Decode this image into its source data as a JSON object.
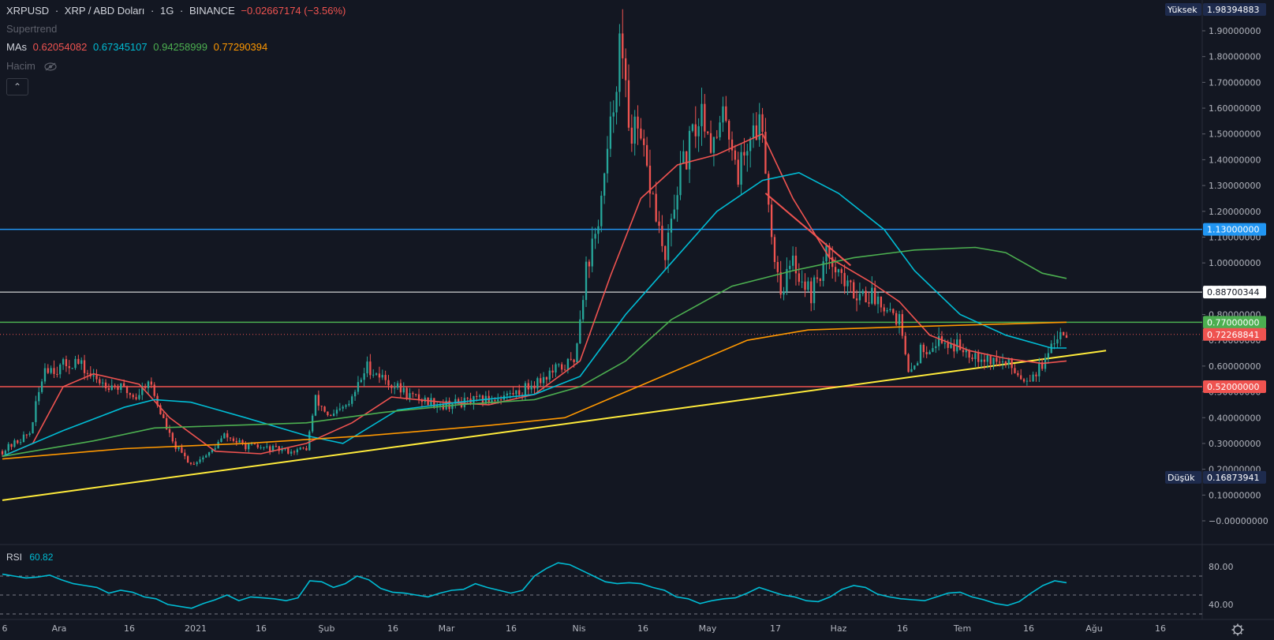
{
  "header": {
    "symbol": "XRPUSD",
    "name": "XRP / ABD Doları",
    "interval": "1G",
    "exchange": "BINANCE",
    "change": "−0.02667174 (−3.56%)",
    "indicator_supertrend": "Supertrend",
    "mas_label": "MAs",
    "ma_values": [
      "0.62054082",
      "0.67345107",
      "0.94258999",
      "0.77290394"
    ],
    "volume_label": "Hacim",
    "collapse_glyph": "⌃"
  },
  "colors": {
    "up": "#26a69a",
    "down": "#ef5350",
    "ma1": "#ef5350",
    "ma2": "#00bcd4",
    "ma3": "#4caf50",
    "ma4": "#ff9800",
    "trendline": "#ffeb3b",
    "resistance": "#2196f3",
    "support": "#ef5350",
    "level_white": "#ffffff",
    "level_green": "#4caf50"
  },
  "price_axis": {
    "labels": [
      "1.90000000",
      "1.80000000",
      "1.70000000",
      "1.60000000",
      "1.50000000",
      "1.40000000",
      "1.30000000",
      "1.20000000",
      "1.10000000",
      "1.00000000",
      "0.90000000",
      "0.80000000",
      "0.70000000",
      "0.60000000",
      "0.50000000",
      "0.40000000",
      "0.30000000",
      "0.20000000",
      "0.10000000",
      "−0.00000000"
    ],
    "tags": {
      "high_label": "Yüksek",
      "high": "1.98394883",
      "low_label": "Düşük",
      "low": "0.16873941",
      "resistance": "1.13000000",
      "white_level": "0.88700344",
      "green_level": "0.77000000",
      "last_price": "0.72268841",
      "support": "0.52000000"
    }
  },
  "time_axis": {
    "labels": [
      "6",
      "Ara",
      "16",
      "2021",
      "16",
      "Şub",
      "16",
      "Mar",
      "16",
      "Nis",
      "16",
      "May",
      "17",
      "Haz",
      "16",
      "Tem",
      "16",
      "Ağu",
      "16"
    ]
  },
  "rsi": {
    "label": "RSI",
    "value": "60.82",
    "axis": [
      "80.00",
      "40.00"
    ]
  },
  "chart_data": {
    "type": "candlestick",
    "title": "XRPUSD · XRP / ABD Doları · 1G · BINANCE",
    "ylim": [
      -0.05,
      2.05
    ],
    "horizontal_levels": [
      1.13,
      0.88700344,
      0.77,
      0.52
    ],
    "last_price": 0.72268841,
    "high": 1.98394883,
    "low": 0.16873941,
    "anchors": [
      {
        "t": 0,
        "p": 0.27
      },
      {
        "t": 9,
        "p": 0.34
      },
      {
        "t": 14,
        "p": 0.6
      },
      {
        "t": 18,
        "p": 0.59
      },
      {
        "t": 24,
        "p": 0.62
      },
      {
        "t": 30,
        "p": 0.55
      },
      {
        "t": 38,
        "p": 0.52
      },
      {
        "t": 44,
        "p": 0.48
      },
      {
        "t": 48,
        "p": 0.55
      },
      {
        "t": 52,
        "p": 0.42
      },
      {
        "t": 56,
        "p": 0.3
      },
      {
        "t": 62,
        "p": 0.22
      },
      {
        "t": 68,
        "p": 0.26
      },
      {
        "t": 73,
        "p": 0.33
      },
      {
        "t": 80,
        "p": 0.29
      },
      {
        "t": 88,
        "p": 0.28
      },
      {
        "t": 95,
        "p": 0.27
      },
      {
        "t": 100,
        "p": 0.28
      },
      {
        "t": 103,
        "p": 0.47
      },
      {
        "t": 108,
        "p": 0.4
      },
      {
        "t": 114,
        "p": 0.45
      },
      {
        "t": 120,
        "p": 0.6
      },
      {
        "t": 128,
        "p": 0.53
      },
      {
        "t": 135,
        "p": 0.48
      },
      {
        "t": 145,
        "p": 0.45
      },
      {
        "t": 160,
        "p": 0.47
      },
      {
        "t": 170,
        "p": 0.5
      },
      {
        "t": 180,
        "p": 0.57
      },
      {
        "t": 188,
        "p": 0.62
      },
      {
        "t": 192,
        "p": 0.98
      },
      {
        "t": 195,
        "p": 1.1
      },
      {
        "t": 199,
        "p": 1.4
      },
      {
        "t": 203,
        "p": 1.85
      },
      {
        "t": 206,
        "p": 1.55
      },
      {
        "t": 210,
        "p": 1.45
      },
      {
        "t": 214,
        "p": 1.25
      },
      {
        "t": 218,
        "p": 1.0
      },
      {
        "t": 222,
        "p": 1.3
      },
      {
        "t": 226,
        "p": 1.45
      },
      {
        "t": 230,
        "p": 1.6
      },
      {
        "t": 234,
        "p": 1.45
      },
      {
        "t": 238,
        "p": 1.58
      },
      {
        "t": 242,
        "p": 1.35
      },
      {
        "t": 246,
        "p": 1.5
      },
      {
        "t": 250,
        "p": 1.55
      },
      {
        "t": 253,
        "p": 1.1
      },
      {
        "t": 256,
        "p": 0.9
      },
      {
        "t": 260,
        "p": 1.0
      },
      {
        "t": 266,
        "p": 0.88
      },
      {
        "t": 272,
        "p": 1.05
      },
      {
        "t": 278,
        "p": 0.9
      },
      {
        "t": 284,
        "p": 0.88
      },
      {
        "t": 290,
        "p": 0.85
      },
      {
        "t": 295,
        "p": 0.78
      },
      {
        "t": 298,
        "p": 0.56
      },
      {
        "t": 302,
        "p": 0.66
      },
      {
        "t": 308,
        "p": 0.7
      },
      {
        "t": 316,
        "p": 0.67
      },
      {
        "t": 324,
        "p": 0.63
      },
      {
        "t": 332,
        "p": 0.6
      },
      {
        "t": 336,
        "p": 0.55
      },
      {
        "t": 340,
        "p": 0.58
      },
      {
        "t": 344,
        "p": 0.63
      },
      {
        "t": 348,
        "p": 0.75
      },
      {
        "t": 350,
        "p": 0.72
      }
    ],
    "ma_series": [
      {
        "period": 20,
        "points": [
          [
            0,
            0.25
          ],
          [
            10,
            0.3
          ],
          [
            20,
            0.52
          ],
          [
            30,
            0.57
          ],
          [
            45,
            0.53
          ],
          [
            55,
            0.4
          ],
          [
            70,
            0.27
          ],
          [
            85,
            0.26
          ],
          [
            100,
            0.3
          ],
          [
            115,
            0.38
          ],
          [
            128,
            0.48
          ],
          [
            145,
            0.46
          ],
          [
            160,
            0.45
          ],
          [
            175,
            0.49
          ],
          [
            190,
            0.62
          ],
          [
            200,
            0.95
          ],
          [
            210,
            1.25
          ],
          [
            222,
            1.38
          ],
          [
            235,
            1.42
          ],
          [
            250,
            1.5
          ],
          [
            260,
            1.25
          ],
          [
            272,
            1.02
          ],
          [
            285,
            0.93
          ],
          [
            295,
            0.85
          ],
          [
            305,
            0.72
          ],
          [
            318,
            0.66
          ],
          [
            330,
            0.63
          ],
          [
            342,
            0.61
          ],
          [
            350,
            0.62
          ]
        ]
      },
      {
        "period": 50,
        "points": [
          [
            0,
            0.25
          ],
          [
            20,
            0.35
          ],
          [
            40,
            0.44
          ],
          [
            50,
            0.47
          ],
          [
            62,
            0.46
          ],
          [
            80,
            0.4
          ],
          [
            100,
            0.33
          ],
          [
            112,
            0.3
          ],
          [
            130,
            0.43
          ],
          [
            150,
            0.46
          ],
          [
            175,
            0.49
          ],
          [
            190,
            0.56
          ],
          [
            205,
            0.8
          ],
          [
            220,
            1.0
          ],
          [
            235,
            1.2
          ],
          [
            250,
            1.32
          ],
          [
            262,
            1.35
          ],
          [
            275,
            1.27
          ],
          [
            290,
            1.13
          ],
          [
            300,
            0.97
          ],
          [
            315,
            0.8
          ],
          [
            330,
            0.72
          ],
          [
            345,
            0.67
          ],
          [
            350,
            0.67
          ]
        ]
      },
      {
        "period": 100,
        "points": [
          [
            0,
            0.25
          ],
          [
            30,
            0.31
          ],
          [
            50,
            0.36
          ],
          [
            75,
            0.37
          ],
          [
            100,
            0.38
          ],
          [
            125,
            0.42
          ],
          [
            150,
            0.45
          ],
          [
            175,
            0.47
          ],
          [
            190,
            0.52
          ],
          [
            205,
            0.62
          ],
          [
            220,
            0.78
          ],
          [
            240,
            0.91
          ],
          [
            260,
            0.97
          ],
          [
            280,
            1.02
          ],
          [
            300,
            1.05
          ],
          [
            320,
            1.06
          ],
          [
            330,
            1.04
          ],
          [
            342,
            0.96
          ],
          [
            350,
            0.94
          ]
        ]
      },
      {
        "period": 200,
        "points": [
          [
            0,
            0.24
          ],
          [
            40,
            0.28
          ],
          [
            80,
            0.3
          ],
          [
            120,
            0.33
          ],
          [
            160,
            0.37
          ],
          [
            185,
            0.4
          ],
          [
            205,
            0.5
          ],
          [
            225,
            0.6
          ],
          [
            245,
            0.7
          ],
          [
            265,
            0.74
          ],
          [
            290,
            0.75
          ],
          [
            320,
            0.76
          ],
          [
            350,
            0.77
          ]
        ]
      }
    ],
    "trendline": {
      "x1": 0,
      "y1": 0.08,
      "x2": 363,
      "y2": 0.66
    },
    "rsi_series": [
      72,
      70,
      68,
      69,
      71,
      66,
      62,
      60,
      58,
      52,
      55,
      53,
      48,
      46,
      40,
      38,
      36,
      41,
      45,
      50,
      44,
      48,
      47,
      46,
      44,
      47,
      65,
      64,
      58,
      62,
      70,
      66,
      57,
      53,
      52,
      50,
      48,
      52,
      55,
      56,
      62,
      58,
      55,
      52,
      55,
      70,
      78,
      84,
      82,
      76,
      70,
      64,
      62,
      63,
      62,
      58,
      55,
      48,
      46,
      41,
      44,
      46,
      47,
      52,
      58,
      54,
      50,
      48,
      44,
      43,
      48,
      56,
      60,
      58,
      51,
      48,
      46,
      45,
      44,
      48,
      52,
      53,
      48,
      45,
      41,
      39,
      43,
      52,
      60,
      65,
      63
    ]
  }
}
